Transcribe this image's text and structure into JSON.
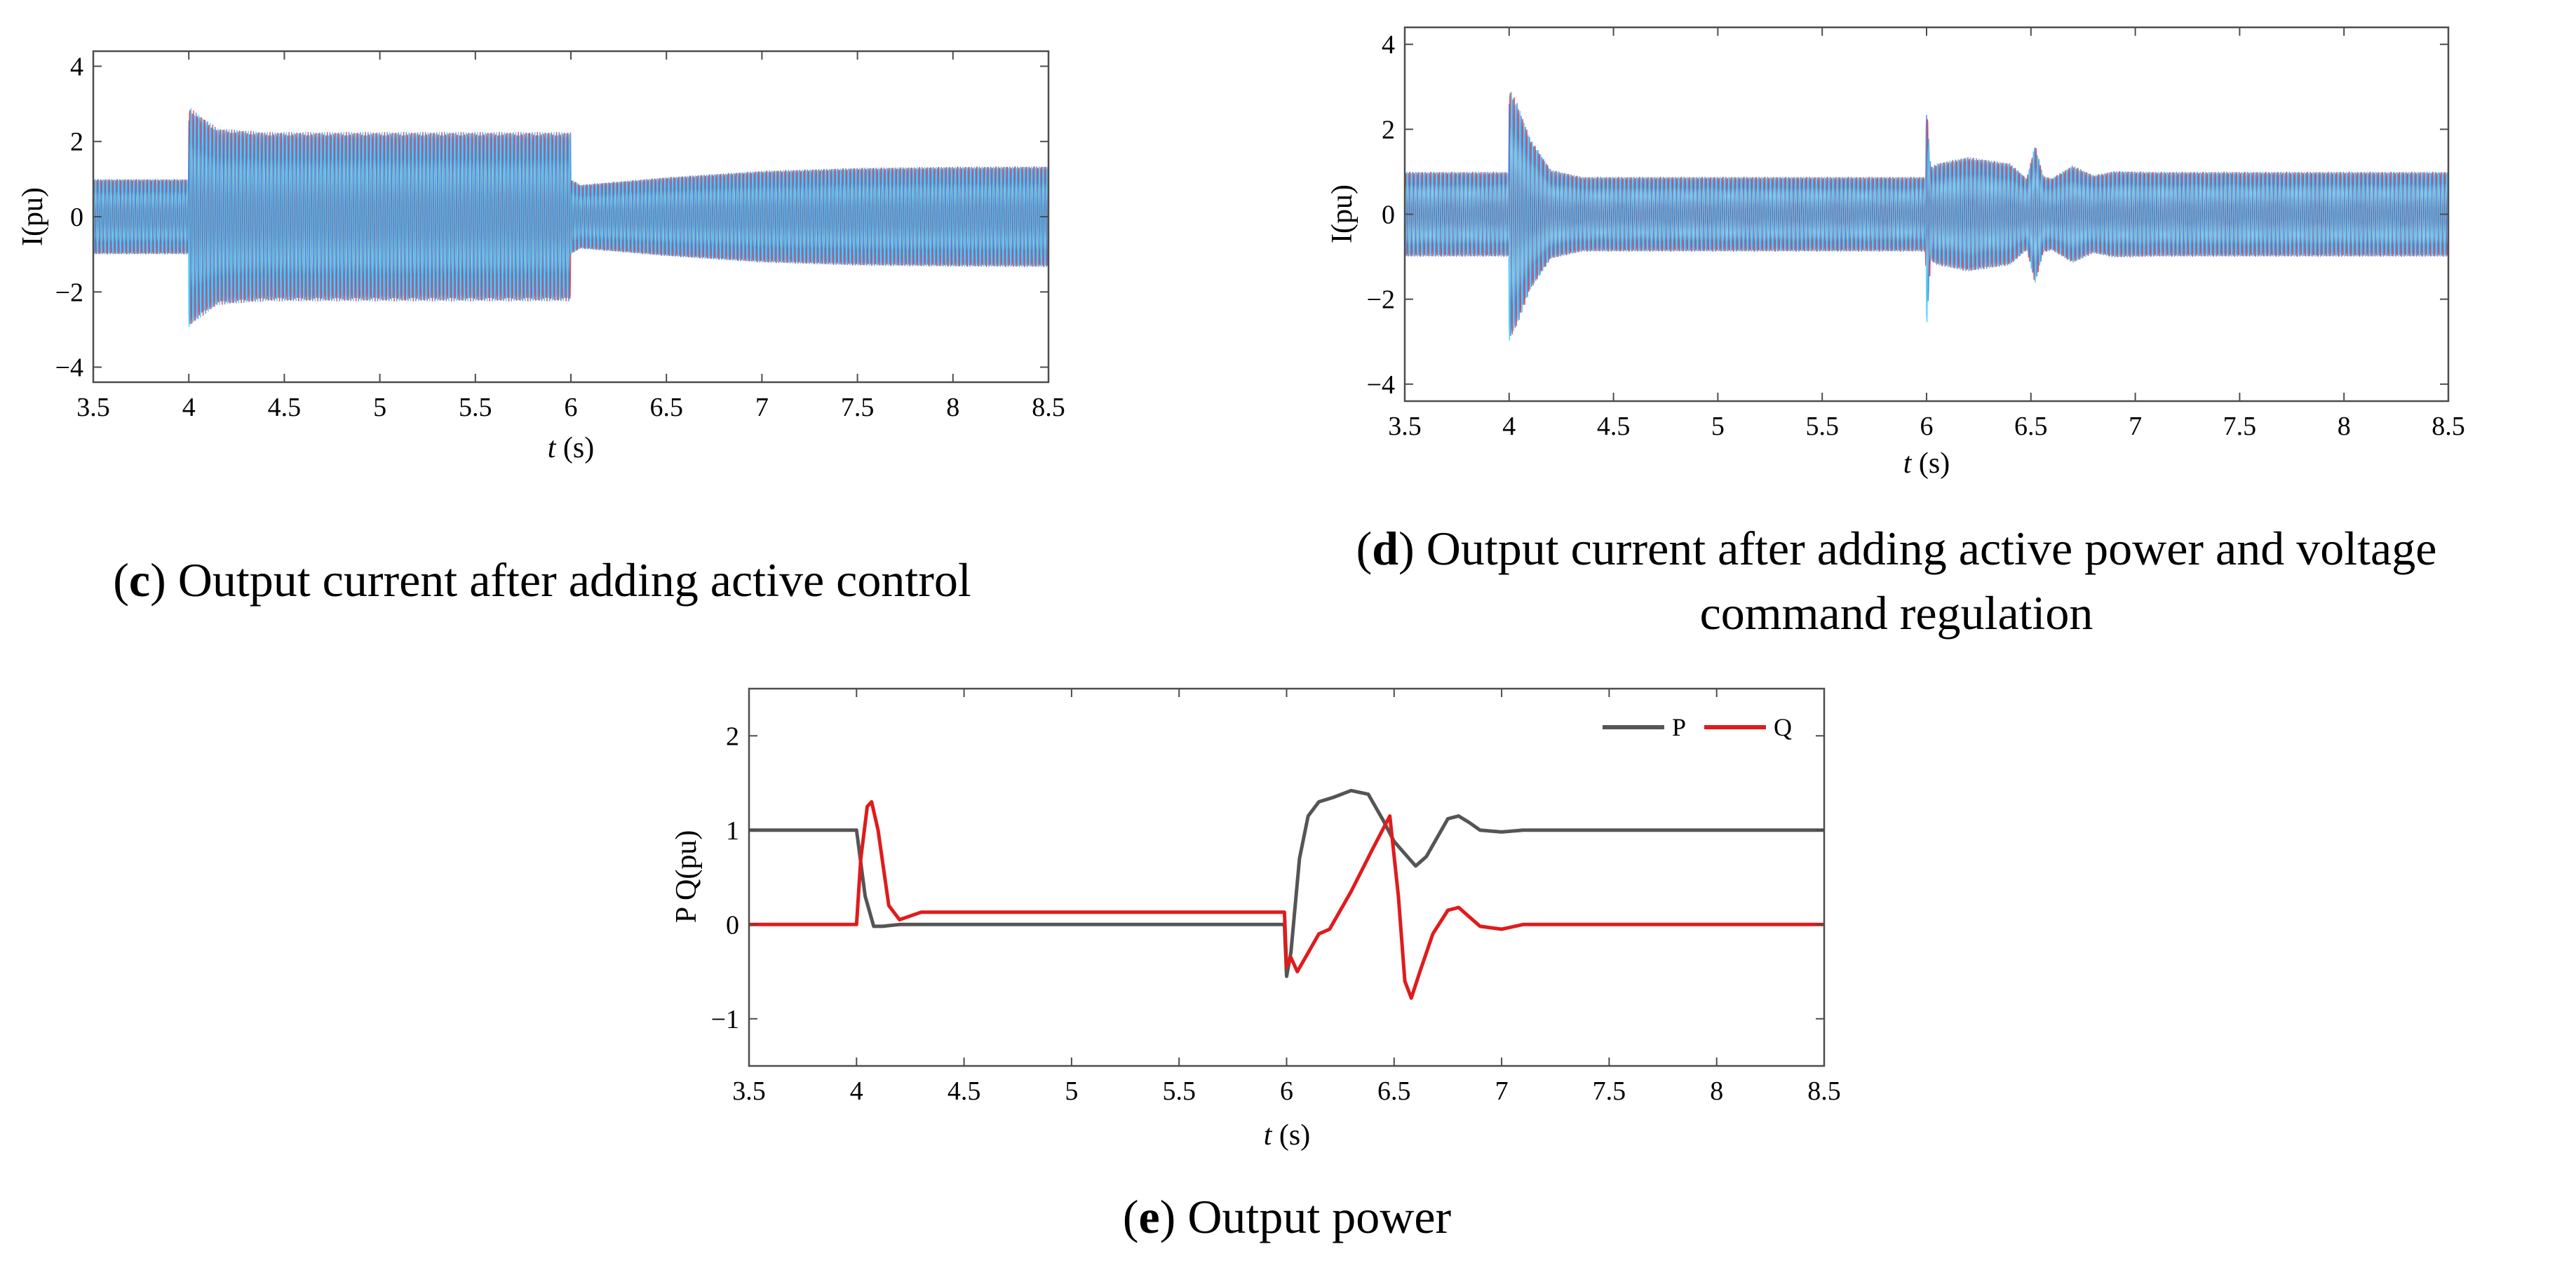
{
  "chart_data": [
    {
      "type": "line",
      "panel": "c",
      "caption_letter": "c",
      "caption_text": "Output current after adding active control",
      "xlabel_var": "t",
      "xlabel_unit": "(s)",
      "ylabel": "I(pu)",
      "xlim": [
        3.5,
        8.5
      ],
      "ylim": [
        -4.4,
        4.4
      ],
      "xticks": [
        3.5,
        4,
        4.5,
        5,
        5.5,
        6,
        6.5,
        7,
        7.5,
        8,
        8.5
      ],
      "xtick_labels": [
        "3.5",
        "4",
        "4.5",
        "5",
        "5.5",
        "6",
        "6.5",
        "7",
        "7.5",
        "8",
        "8.5"
      ],
      "yticks": [
        -4,
        -2,
        0,
        2,
        4
      ],
      "ytick_labels": [
        "−4",
        "−2",
        "0",
        "2",
        "4"
      ],
      "series_colors": [
        "#e8323c",
        "#2f80e8",
        "#38c8f0"
      ],
      "envelope": {
        "t": [
          3.5,
          3.999,
          4.0,
          4.03,
          4.15,
          4.4,
          5.999,
          6.0,
          6.05,
          6.5,
          7.0,
          7.5,
          8.0,
          8.5
        ],
        "amp": [
          1.0,
          1.0,
          2.95,
          2.8,
          2.35,
          2.25,
          2.25,
          1.0,
          0.85,
          1.05,
          1.22,
          1.3,
          1.33,
          1.34
        ]
      }
    },
    {
      "type": "line",
      "panel": "d",
      "caption_letter": "d",
      "caption_line1": "Output current after adding active power and voltage",
      "caption_line2": "command regulation",
      "xlabel_var": "t",
      "xlabel_unit": "(s)",
      "ylabel": "I(pu)",
      "xlim": [
        3.5,
        8.5
      ],
      "ylim": [
        -4.4,
        4.4
      ],
      "xticks": [
        3.5,
        4,
        4.5,
        5,
        5.5,
        6,
        6.5,
        7,
        7.5,
        8,
        8.5
      ],
      "xtick_labels": [
        "3.5",
        "4",
        "4.5",
        "5",
        "5.5",
        "6",
        "6.5",
        "7",
        "7.5",
        "8",
        "8.5"
      ],
      "yticks": [
        -4,
        -2,
        0,
        2,
        4
      ],
      "ytick_labels": [
        "−4",
        "−2",
        "0",
        "2",
        "4"
      ],
      "series_colors": [
        "#e8323c",
        "#2f80e8",
        "#38c8f0"
      ],
      "envelope": {
        "t": [
          3.5,
          3.999,
          4.0,
          4.04,
          4.1,
          4.2,
          4.35,
          5.995,
          6.0,
          6.02,
          6.05,
          6.2,
          6.4,
          6.48,
          6.52,
          6.56,
          6.6,
          6.7,
          6.8,
          6.9,
          7.1,
          8.5
        ],
        "amp": [
          1.0,
          1.0,
          3.0,
          2.6,
          1.8,
          1.05,
          0.88,
          0.88,
          2.7,
          1.1,
          1.2,
          1.35,
          1.2,
          0.85,
          1.65,
          0.9,
          0.85,
          1.15,
          0.92,
          1.02,
          1.0,
          1.0
        ]
      }
    },
    {
      "type": "line",
      "panel": "e",
      "caption_letter": "e",
      "caption_text": "Output power",
      "xlabel_var": "t",
      "xlabel_unit": "(s)",
      "ylabel": "P Q(pu)",
      "xlim": [
        3.5,
        8.5
      ],
      "ylim": [
        -1.5,
        2.5
      ],
      "xticks": [
        3.5,
        4,
        4.5,
        5,
        5.5,
        6,
        6.5,
        7,
        7.5,
        8,
        8.5
      ],
      "xtick_labels": [
        "3.5",
        "4",
        "4.5",
        "5",
        "5.5",
        "6",
        "6.5",
        "7",
        "7.5",
        "8",
        "8.5"
      ],
      "yticks": [
        -1,
        0,
        1,
        2
      ],
      "ytick_labels": [
        "−1",
        "0",
        "1",
        "2"
      ],
      "legend_position": "top-right",
      "series": [
        {
          "name": "P",
          "color": "#555555",
          "x": [
            3.5,
            4.0,
            4.04,
            4.08,
            4.12,
            4.2,
            5.99,
            6.0,
            6.02,
            6.06,
            6.1,
            6.15,
            6.22,
            6.3,
            6.38,
            6.45,
            6.5,
            6.55,
            6.6,
            6.65,
            6.7,
            6.75,
            6.8,
            6.85,
            6.9,
            7.0,
            7.1,
            8.5
          ],
          "y": [
            1.0,
            1.0,
            0.3,
            -0.02,
            -0.02,
            0.0,
            0.0,
            -0.55,
            -0.3,
            0.7,
            1.15,
            1.3,
            1.35,
            1.42,
            1.38,
            1.1,
            0.88,
            0.75,
            0.62,
            0.72,
            0.92,
            1.12,
            1.15,
            1.08,
            1.0,
            0.98,
            1.0,
            1.0
          ]
        },
        {
          "name": "Q",
          "color": "#e01b1b",
          "x": [
            3.5,
            4.0,
            4.02,
            4.05,
            4.07,
            4.1,
            4.15,
            4.2,
            4.3,
            5.99,
            6.0,
            6.02,
            6.05,
            6.1,
            6.15,
            6.2,
            6.3,
            6.4,
            6.48,
            6.52,
            6.55,
            6.58,
            6.62,
            6.68,
            6.75,
            6.8,
            6.85,
            6.9,
            7.0,
            7.1,
            8.5
          ],
          "y": [
            0.0,
            0.0,
            0.7,
            1.25,
            1.3,
            1.0,
            0.2,
            0.05,
            0.13,
            0.13,
            -0.45,
            -0.35,
            -0.5,
            -0.3,
            -0.1,
            -0.05,
            0.35,
            0.8,
            1.15,
            0.3,
            -0.6,
            -0.78,
            -0.5,
            -0.1,
            0.15,
            0.18,
            0.08,
            -0.02,
            -0.05,
            0.0,
            0.0
          ]
        }
      ]
    }
  ]
}
